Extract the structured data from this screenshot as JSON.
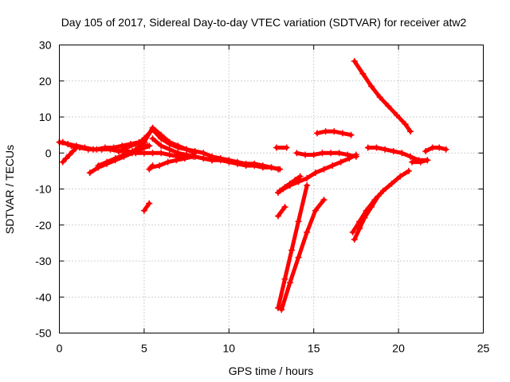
{
  "chart_data": {
    "type": "scatter",
    "title": "Day 105 of 2017, Sidereal Day-to-day VTEC variation (SDTVAR) for receiver atw2",
    "xlabel": "GPS time / hours",
    "ylabel": "SDTVAR / TECUs",
    "xlim": [
      0,
      25
    ],
    "ylim": [
      -50,
      30
    ],
    "xticks": [
      0,
      5,
      10,
      15,
      20,
      25
    ],
    "yticks": [
      -50,
      -40,
      -30,
      -20,
      -10,
      0,
      10,
      20,
      30
    ],
    "grid": true,
    "color": "#ff0000",
    "marker": "plus",
    "series": [
      {
        "x": [
          0.0,
          0.5,
          1.0,
          1.5,
          2.0,
          2.5,
          3.0,
          3.5,
          4.0,
          4.5,
          5.0,
          5.5,
          6.0,
          6.5,
          7.0,
          7.5,
          8.0,
          8.5,
          9.0,
          9.5,
          10.0,
          10.5,
          11.0,
          11.5,
          12.0,
          12.5,
          12.9
        ],
        "y": [
          3,
          2.5,
          2,
          1.5,
          1,
          1,
          1,
          0.5,
          0.5,
          0,
          0,
          0,
          0,
          -0.5,
          -1,
          -1,
          -1,
          -1.5,
          -2,
          -2,
          -2.5,
          -3,
          -3.5,
          -3.5,
          -4,
          -4,
          -4.5
        ]
      },
      {
        "x": [
          0.2,
          0.7,
          1.2,
          1.7,
          2.2,
          2.7,
          3.2,
          3.7,
          4.2,
          4.7,
          5.1
        ],
        "y": [
          3,
          2,
          1.5,
          1,
          1,
          1.5,
          1.5,
          2,
          2.5,
          3,
          2
        ]
      },
      {
        "x": [
          0.2,
          0.4,
          0.6,
          0.8,
          1.0
        ],
        "y": [
          -2.5,
          -1.5,
          -0.5,
          0.5,
          1.5
        ]
      },
      {
        "x": [
          1.8,
          2.3,
          2.8,
          3.3,
          3.8,
          4.3,
          4.8,
          5.3
        ],
        "y": [
          -5.5,
          -4,
          -3,
          -2,
          -1,
          0,
          1,
          2
        ]
      },
      {
        "x": [
          2.3,
          2.8,
          3.3,
          3.8,
          4.3,
          4.8,
          5.2
        ],
        "y": [
          -3.5,
          -2.5,
          -1.5,
          -0.5,
          0.5,
          1.5,
          2
        ]
      },
      {
        "x": [
          3.5,
          4.0,
          4.5,
          4.9
        ],
        "y": [
          0.5,
          1.5,
          2.5,
          3.5
        ]
      },
      {
        "x": [
          4.5,
          5.0,
          5.5,
          6.0,
          6.5,
          7.0,
          7.5,
          8.0
        ],
        "y": [
          1,
          3,
          7,
          5,
          3,
          2,
          1,
          0
        ]
      },
      {
        "x": [
          5.0,
          5.5,
          6.0,
          6.5,
          7.0,
          7.5,
          8.0,
          8.5,
          9.0,
          9.5,
          10.0,
          10.5,
          11.0,
          11.5,
          12.0,
          12.5,
          13.0
        ],
        "y": [
          4,
          6.5,
          4,
          2.5,
          1.5,
          1,
          0.5,
          0,
          -1,
          -1.5,
          -2,
          -2.5,
          -3,
          -3,
          -3.5,
          -4,
          -4.5
        ]
      },
      {
        "x": [
          5.5,
          6.0,
          6.5,
          7.0,
          7.5,
          8.0,
          8.5,
          9.0
        ],
        "y": [
          4,
          2,
          1,
          0,
          -0.5,
          -1,
          -1.5,
          -2
        ]
      },
      {
        "x": [
          5.4,
          5.9,
          6.4,
          6.9,
          7.4,
          7.9
        ],
        "y": [
          -4,
          -3.5,
          -2.5,
          -2,
          -1.5,
          -1
        ]
      },
      {
        "x": [
          5.3,
          5.5
        ],
        "y": [
          -4.5,
          -3.5
        ]
      },
      {
        "x": [
          5.0,
          5.3
        ],
        "y": [
          -16,
          -14
        ]
      },
      {
        "x": [
          12.9,
          13.2,
          13.6,
          14.1,
          14.6,
          15.1,
          15.6,
          16.1,
          16.6,
          17.1,
          17.5
        ],
        "y": [
          -11,
          -10,
          -9,
          -8,
          -7,
          -5.5,
          -4.5,
          -3.5,
          -2.5,
          -1.5,
          -0.5
        ]
      },
      {
        "x": [
          13.0,
          13.3,
          13.6,
          13.9,
          14.2
        ],
        "y": [
          -10.5,
          -9.5,
          -8.5,
          -7.5,
          -6.5
        ]
      },
      {
        "x": [
          12.9,
          13.3
        ],
        "y": [
          -17.5,
          -15
        ]
      },
      {
        "x": [
          12.9,
          13.3,
          13.7,
          14.1,
          14.6
        ],
        "y": [
          -43,
          -35,
          -27,
          -19,
          -9
        ]
      },
      {
        "x": [
          13.1,
          13.6,
          14.1,
          14.6,
          15.1,
          15.6
        ],
        "y": [
          -43.5,
          -36,
          -29,
          -22,
          -16,
          -13
        ]
      },
      {
        "x": [
          12.8,
          13.4
        ],
        "y": [
          1.5,
          1.5
        ]
      },
      {
        "x": [
          14.0,
          14.5,
          15.0,
          15.5,
          16.0,
          16.5,
          17.0,
          17.5
        ],
        "y": [
          0,
          -0.5,
          -0.5,
          0,
          0,
          0,
          -0.5,
          -1
        ]
      },
      {
        "x": [
          15.2,
          15.7,
          16.2,
          16.7,
          17.2
        ],
        "y": [
          5.5,
          6,
          6,
          5.5,
          5
        ]
      },
      {
        "x": [
          18.2,
          18.7,
          19.2,
          19.7,
          20.2,
          20.7,
          21.2,
          21.7
        ],
        "y": [
          1.5,
          1.5,
          1,
          0.5,
          0,
          -1,
          -2,
          -2
        ]
      },
      {
        "x": [
          20.8,
          21.3,
          21.7
        ],
        "y": [
          -2.5,
          -2.5,
          -2
        ]
      },
      {
        "x": [
          21.6,
          22.0,
          22.4,
          22.8
        ],
        "y": [
          0.5,
          1.5,
          1.5,
          1
        ]
      },
      {
        "x": [
          17.4,
          17.9,
          18.4,
          18.9,
          19.4,
          19.9,
          20.4,
          20.7
        ],
        "y": [
          25.5,
          22,
          18.5,
          15.5,
          13,
          10.5,
          8,
          6
        ]
      },
      {
        "x": [
          17.4,
          17.7,
          18.0,
          18.4,
          18.8
        ],
        "y": [
          -24,
          -21,
          -18,
          -15,
          -12
        ]
      },
      {
        "x": [
          17.3,
          17.7,
          18.1,
          18.6,
          19.1,
          19.6,
          20.1,
          20.6
        ],
        "y": [
          -22,
          -19,
          -16,
          -13,
          -10.5,
          -8.5,
          -6.5,
          -5
        ]
      }
    ]
  }
}
